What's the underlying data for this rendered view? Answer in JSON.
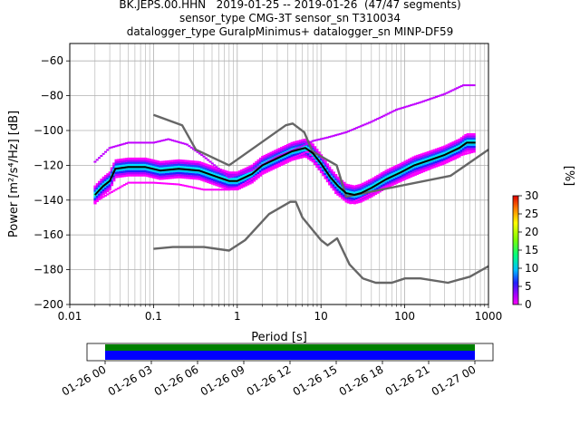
{
  "title_lines": [
    "BK.JEPS.00.HHN   2019-01-25 -- 2019-01-26  (47/47 segments)",
    "sensor_type CMG-3T sensor_sn T310034",
    "datalogger_type GuralpMinimus+ datalogger_sn MINP-DF59"
  ],
  "chart_data": [
    {
      "type": "heatmap",
      "xlabel": "Period [s]",
      "ylabel": "Power [m²/s⁴/Hz] [dB]",
      "xscale": "log",
      "xlim": [
        0.01,
        1000
      ],
      "ylim": [
        -200,
        -50
      ],
      "x_tick_labels": [
        "0.01",
        "0.1",
        "1",
        "10",
        "100",
        "1000"
      ],
      "x_ticks": [
        0.01,
        0.1,
        1,
        10,
        100,
        1000
      ],
      "y_ticks": [
        -200,
        -180,
        -160,
        -140,
        -120,
        -100,
        -80,
        -60
      ],
      "y_tick_labels": [
        "−200",
        "−180",
        "−160",
        "−140",
        "−120",
        "−100",
        "−80",
        "−60"
      ],
      "grid": true,
      "colorbar": {
        "label": "[%]",
        "range": [
          0,
          30
        ],
        "ticks": [
          0,
          5,
          10,
          15,
          20,
          25,
          30
        ]
      },
      "series": [
        {
          "name": "",
          "role": "high-noise-model",
          "color": "#666666",
          "points": [
            [
              0.1,
              -91
            ],
            [
              0.22,
              -97
            ],
            [
              0.32,
              -111
            ],
            [
              0.8,
              -120
            ],
            [
              3.8,
              -97
            ],
            [
              4.6,
              -96
            ],
            [
              6.3,
              -101
            ],
            [
              7.9,
              -112
            ],
            [
              15.4,
              -120
            ],
            [
              20,
              -138
            ],
            [
              354,
              -126
            ],
            [
              1000,
              -111
            ]
          ]
        },
        {
          "name": "",
          "role": "low-noise-model",
          "color": "#666666",
          "points": [
            [
              0.1,
              -168
            ],
            [
              0.17,
              -167
            ],
            [
              0.4,
              -167
            ],
            [
              0.8,
              -169
            ],
            [
              1.24,
              -163
            ],
            [
              2.4,
              -148
            ],
            [
              4.3,
              -141
            ],
            [
              5,
              -141
            ],
            [
              6,
              -150
            ],
            [
              10,
              -163
            ],
            [
              12,
              -166
            ],
            [
              15.6,
              -162
            ],
            [
              21.9,
              -177
            ],
            [
              31.6,
              -185
            ],
            [
              45,
              -187.5
            ],
            [
              70,
              -187.5
            ],
            [
              101,
              -185
            ],
            [
              154,
              -185
            ],
            [
              328,
              -187.5
            ],
            [
              600,
              -184
            ],
            [
              1000,
              -178
            ]
          ]
        },
        {
          "name": "",
          "role": "mode",
          "color": "#000000",
          "points": [
            [
              0.02,
              -137
            ],
            [
              0.025,
              -132
            ],
            [
              0.03,
              -129
            ],
            [
              0.035,
              -122
            ],
            [
              0.05,
              -121
            ],
            [
              0.08,
              -121
            ],
            [
              0.12,
              -123
            ],
            [
              0.2,
              -122
            ],
            [
              0.35,
              -123
            ],
            [
              0.6,
              -127
            ],
            [
              0.8,
              -129
            ],
            [
              1.0,
              -129
            ],
            [
              1.5,
              -125
            ],
            [
              2.0,
              -120
            ],
            [
              3.0,
              -116
            ],
            [
              4.5,
              -112
            ],
            [
              6.5,
              -110
            ],
            [
              8.0,
              -113
            ],
            [
              10,
              -119
            ],
            [
              13,
              -127
            ],
            [
              16,
              -132
            ],
            [
              20,
              -136
            ],
            [
              25,
              -137
            ],
            [
              30,
              -136
            ],
            [
              40,
              -133
            ],
            [
              60,
              -128
            ],
            [
              90,
              -124
            ],
            [
              130,
              -120
            ],
            [
              200,
              -117
            ],
            [
              300,
              -114
            ],
            [
              450,
              -110
            ],
            [
              550,
              -107
            ],
            [
              700,
              -107
            ]
          ]
        },
        {
          "name": "",
          "role": "outlier-upper",
          "color": "#c000ff",
          "points": [
            [
              0.02,
              -118
            ],
            [
              0.03,
              -110
            ],
            [
              0.05,
              -107
            ],
            [
              0.1,
              -107
            ],
            [
              0.15,
              -105
            ],
            [
              0.25,
              -108
            ],
            [
              0.4,
              -115
            ],
            [
              0.8,
              -127
            ],
            [
              1.5,
              -123
            ],
            [
              3,
              -115
            ],
            [
              6,
              -109
            ],
            [
              8,
              -106
            ],
            [
              12,
              -104
            ],
            [
              20,
              -101
            ],
            [
              40,
              -95
            ],
            [
              80,
              -88
            ],
            [
              150,
              -84
            ],
            [
              300,
              -79
            ],
            [
              500,
              -74
            ],
            [
              700,
              -74
            ]
          ]
        },
        {
          "name": "",
          "role": "outlier-lower",
          "color": "#c000ff",
          "points": [
            [
              0.02,
              -141
            ],
            [
              0.03,
              -136
            ],
            [
              0.05,
              -130
            ],
            [
              0.1,
              -130
            ],
            [
              0.2,
              -131
            ],
            [
              0.4,
              -134
            ],
            [
              0.8,
              -134
            ],
            [
              1.0,
              -133
            ],
            [
              2,
              -124
            ],
            [
              4,
              -117
            ],
            [
              7,
              -112
            ],
            [
              10,
              -122
            ],
            [
              15,
              -136
            ],
            [
              22,
              -142
            ],
            [
              30,
              -139
            ],
            [
              50,
              -134
            ],
            [
              100,
              -128
            ],
            [
              200,
              -122
            ],
            [
              400,
              -115
            ],
            [
              700,
              -112
            ]
          ]
        }
      ]
    },
    {
      "type": "timeline",
      "x_tick_labels": [
        "01-26 00",
        "01-26 03",
        "01-26 06",
        "01-26 09",
        "01-26 12",
        "01-26 15",
        "01-26 18",
        "01-26 21",
        "01-27 00"
      ],
      "bars": [
        {
          "color": "#008000",
          "start": 0,
          "end": 24
        },
        {
          "color": "#0000ff",
          "start": 0,
          "end": 24
        }
      ]
    }
  ]
}
